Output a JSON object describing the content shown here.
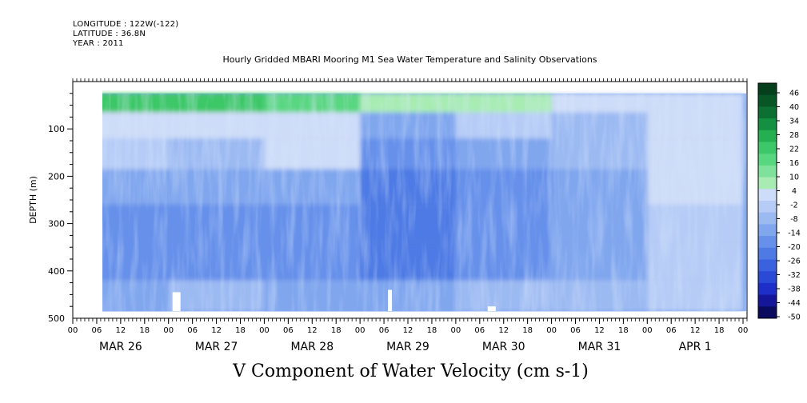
{
  "header": {
    "longitude": "LONGITUDE : 122W(-122)",
    "latitude": "LATITUDE : 36.8N",
    "year": "YEAR : 2011",
    "title": "Hourly Gridded MBARI Mooring M1 Sea Water Temperature and Salinity Observations"
  },
  "chart_data": {
    "type": "heatmap",
    "title": "Hourly Gridded MBARI Mooring M1 Sea Water Temperature and Salinity Observations",
    "xlabel": "",
    "ylabel": "DEPTH (m)",
    "colorbar_label": "V Component of Water Velocity (cm s-1)",
    "x_hour_ticks": [
      "00",
      "06",
      "12",
      "18",
      "00",
      "06",
      "12",
      "18",
      "00",
      "06",
      "12",
      "18",
      "00",
      "06",
      "12",
      "18",
      "00",
      "06",
      "12",
      "18",
      "00",
      "06",
      "12",
      "18",
      "00",
      "06",
      "12",
      "18",
      "00"
    ],
    "x_day_labels": [
      "MAR 26",
      "MAR 27",
      "MAR 28",
      "MAR 29",
      "MAR 30",
      "MAR 31",
      "APR  1"
    ],
    "xlim_hours": [
      0,
      169
    ],
    "data_xlim_hours": [
      2,
      169
    ],
    "y_ticks": [
      "100",
      "200",
      "300",
      "400",
      "500"
    ],
    "ylim": [
      500,
      0
    ],
    "data_ylim": [
      25,
      485
    ],
    "colorbar_levels": [
      "46",
      "40",
      "34",
      "28",
      "22",
      "16",
      "10",
      "4",
      "-2",
      "-8",
      "-14",
      "-20",
      "-26",
      "-32",
      "-38",
      "-44",
      "-50"
    ],
    "colorbar_range": [
      -50,
      52
    ],
    "colorbar_colors": [
      "#0a0a5e",
      "#16169a",
      "#1e2ec8",
      "#2a4ad6",
      "#3a62de",
      "#4e7ae4",
      "#6690ea",
      "#80a6ee",
      "#9cbaf2",
      "#b6ccf6",
      "#cddcf8",
      "#a8ecb4",
      "#7ee29a",
      "#58d680",
      "#3cc868",
      "#24b050",
      "#149040",
      "#0c7032",
      "#085626",
      "#04401c"
    ],
    "overview_rows": {
      "depths": [
        40,
        90,
        150,
        220,
        300,
        380,
        460
      ],
      "days": [
        "MAR 26",
        "MAR 27",
        "MAR 28",
        "MAR 29",
        "MAR 30",
        "MAR 31",
        "APR  1"
      ],
      "values": [
        [
          22,
          26,
          18,
          8,
          10,
          2,
          6
        ],
        [
          6,
          4,
          2,
          -10,
          -4,
          -6,
          2
        ],
        [
          -4,
          -8,
          4,
          -16,
          -10,
          -8,
          6
        ],
        [
          -12,
          -14,
          -12,
          -22,
          -16,
          -10,
          4
        ],
        [
          -16,
          -18,
          -16,
          -24,
          -18,
          -12,
          -2
        ],
        [
          -18,
          -16,
          -18,
          -22,
          -16,
          -10,
          0
        ],
        [
          -10,
          -8,
          -10,
          -14,
          -8,
          -6,
          0
        ]
      ]
    }
  }
}
